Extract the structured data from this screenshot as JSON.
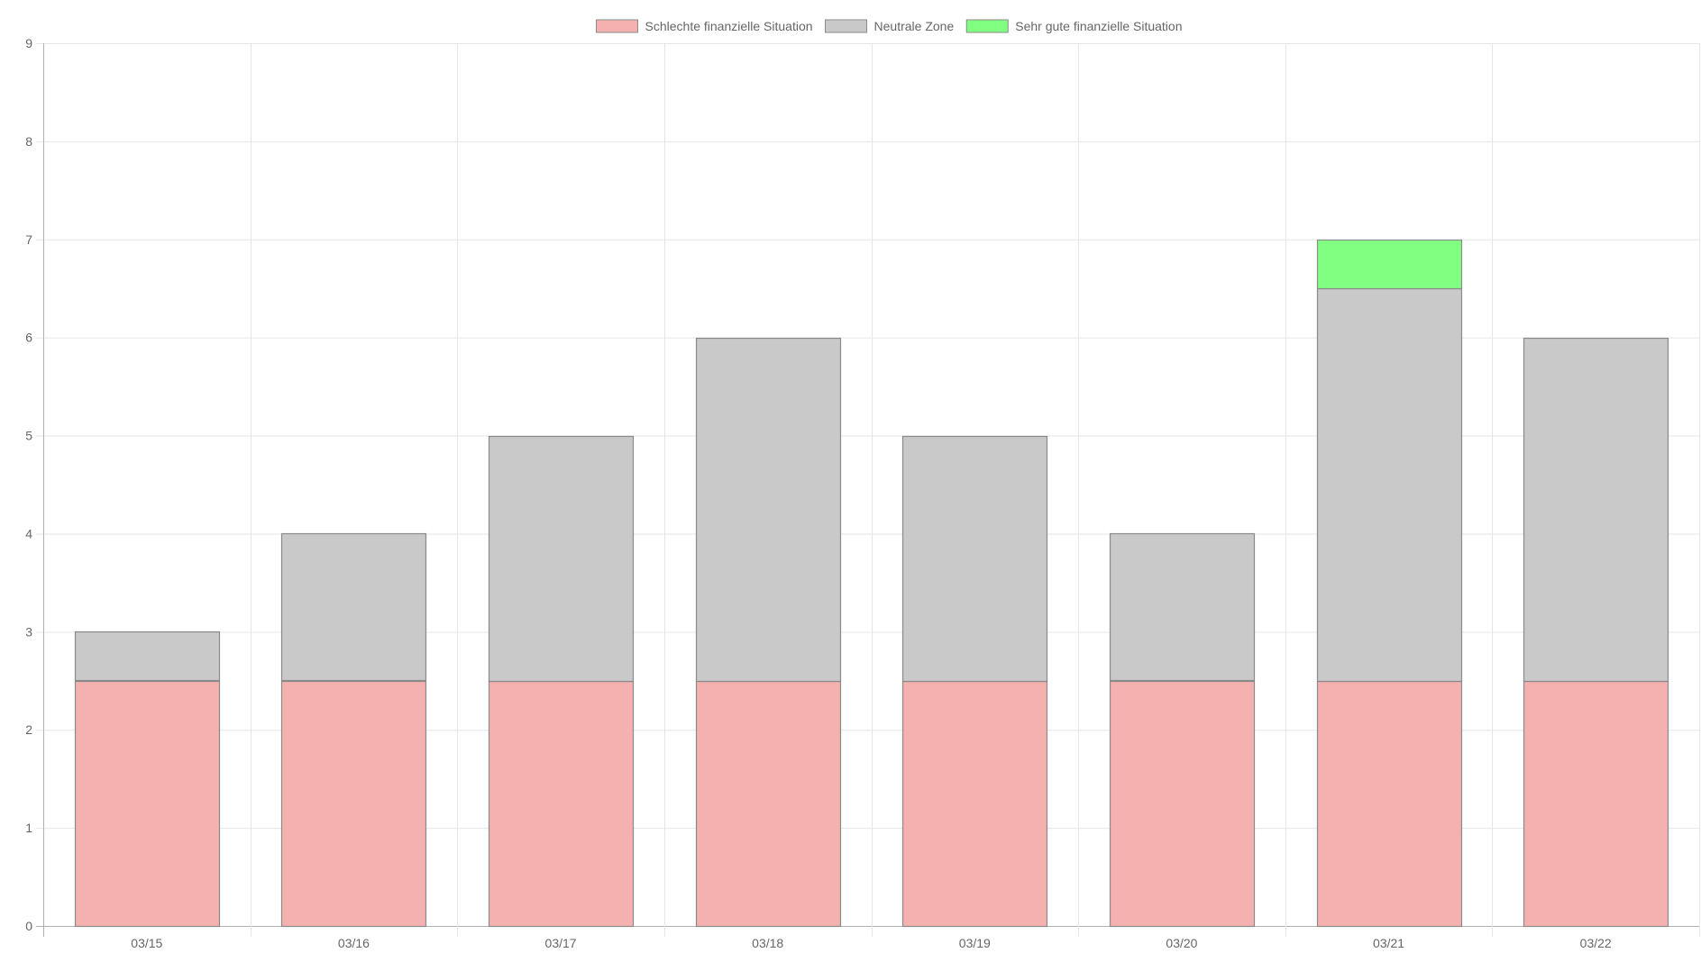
{
  "chart_data": {
    "type": "bar",
    "stacked": true,
    "categories": [
      "03/15",
      "03/16",
      "03/17",
      "03/18",
      "03/19",
      "03/20",
      "03/21",
      "03/22"
    ],
    "series": [
      {
        "name": "Schlechte finanzielle Situation",
        "color": "#f5b0b0",
        "values": [
          2.5,
          2.5,
          2.5,
          2.5,
          2.5,
          2.5,
          2.5,
          2.5
        ]
      },
      {
        "name": "Neutrale Zone",
        "color": "#c9c9c9",
        "values": [
          0.5,
          1.5,
          2.5,
          3.5,
          2.5,
          1.5,
          4.0,
          3.5
        ]
      },
      {
        "name": "Sehr gute finanzielle Situation",
        "color": "#80ff80",
        "values": [
          0,
          0,
          0,
          0,
          0,
          0,
          0.5,
          0
        ]
      }
    ],
    "ylim": [
      0,
      9
    ],
    "yticks": [
      "0",
      "1",
      "2",
      "3",
      "4",
      "5",
      "6",
      "7",
      "8",
      "9"
    ],
    "grid": true,
    "legend_position": "top-center",
    "title": "",
    "xlabel": "",
    "ylabel": ""
  }
}
